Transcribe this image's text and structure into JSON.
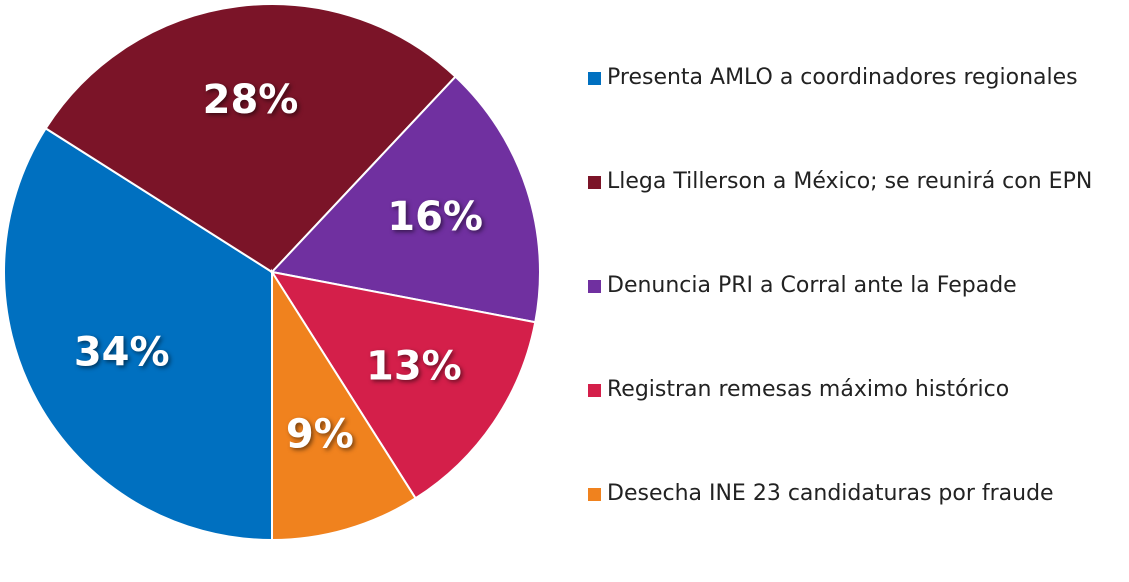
{
  "chart_data": {
    "type": "pie",
    "categories": [
      "Presenta AMLO a coordinadores regionales",
      "Llega Tillerson a México; se reunirá con EPN",
      "Denuncia PRI a Corral ante la Fepade",
      "Registran remesas máximo histórico",
      "Desecha INE 23 candidaturas por fraude"
    ],
    "values": [
      34,
      28,
      16,
      13,
      9
    ],
    "value_labels": [
      "34%",
      "28%",
      "16%",
      "13%",
      "9%"
    ],
    "colors": [
      "#0070c0",
      "#7b1428",
      "#7030a0",
      "#d41f4a",
      "#f0821e"
    ],
    "legend": "right"
  }
}
